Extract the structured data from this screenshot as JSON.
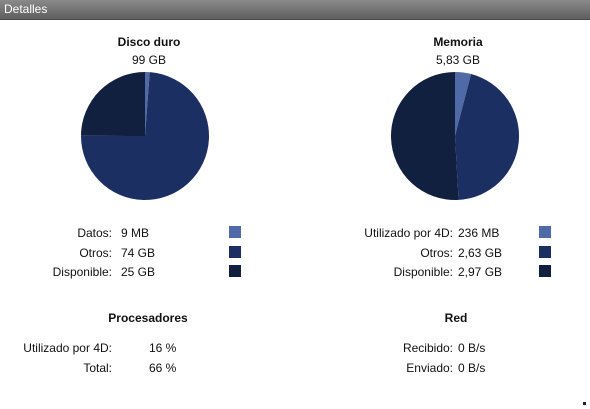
{
  "window": {
    "title": "Detalles"
  },
  "disk": {
    "title": "Disco duro",
    "total": "99 GB",
    "rows": [
      {
        "label": "Datos:",
        "value": "9 MB",
        "color": "#4f6aa6"
      },
      {
        "label": "Otros:",
        "value": "74 GB",
        "color": "#1c2f62"
      },
      {
        "label": "Disponible:",
        "value": "25 GB",
        "color": "#12203f"
      }
    ],
    "chart_data": {
      "type": "pie",
      "values": [
        0.009,
        74,
        25
      ],
      "colors": [
        "#4f6aa6",
        "#1c2f62",
        "#12203f"
      ]
    }
  },
  "memory": {
    "title": "Memoria",
    "total": "5,83 GB",
    "rows": [
      {
        "label": "Utilizado por 4D:",
        "value": "236 MB",
        "color": "#4f6aa6"
      },
      {
        "label": "Otros:",
        "value": "2,63 GB",
        "color": "#1c2f62"
      },
      {
        "label": "Disponible:",
        "value": "2,97 GB",
        "color": "#12203f"
      }
    ],
    "chart_data": {
      "type": "pie",
      "values": [
        0.236,
        2.63,
        2.97
      ],
      "colors": [
        "#4f6aa6",
        "#1c2f62",
        "#12203f"
      ]
    }
  },
  "processors": {
    "title": "Procesadores",
    "rows": [
      {
        "label": "Utilizado por 4D:",
        "value": "16 %"
      },
      {
        "label": "Total:",
        "value": "66 %"
      }
    ]
  },
  "network": {
    "title": "Red",
    "rows": [
      {
        "label": "Recibido:",
        "value": "0 B/s"
      },
      {
        "label": "Enviado:",
        "value": "0 B/s"
      }
    ]
  }
}
